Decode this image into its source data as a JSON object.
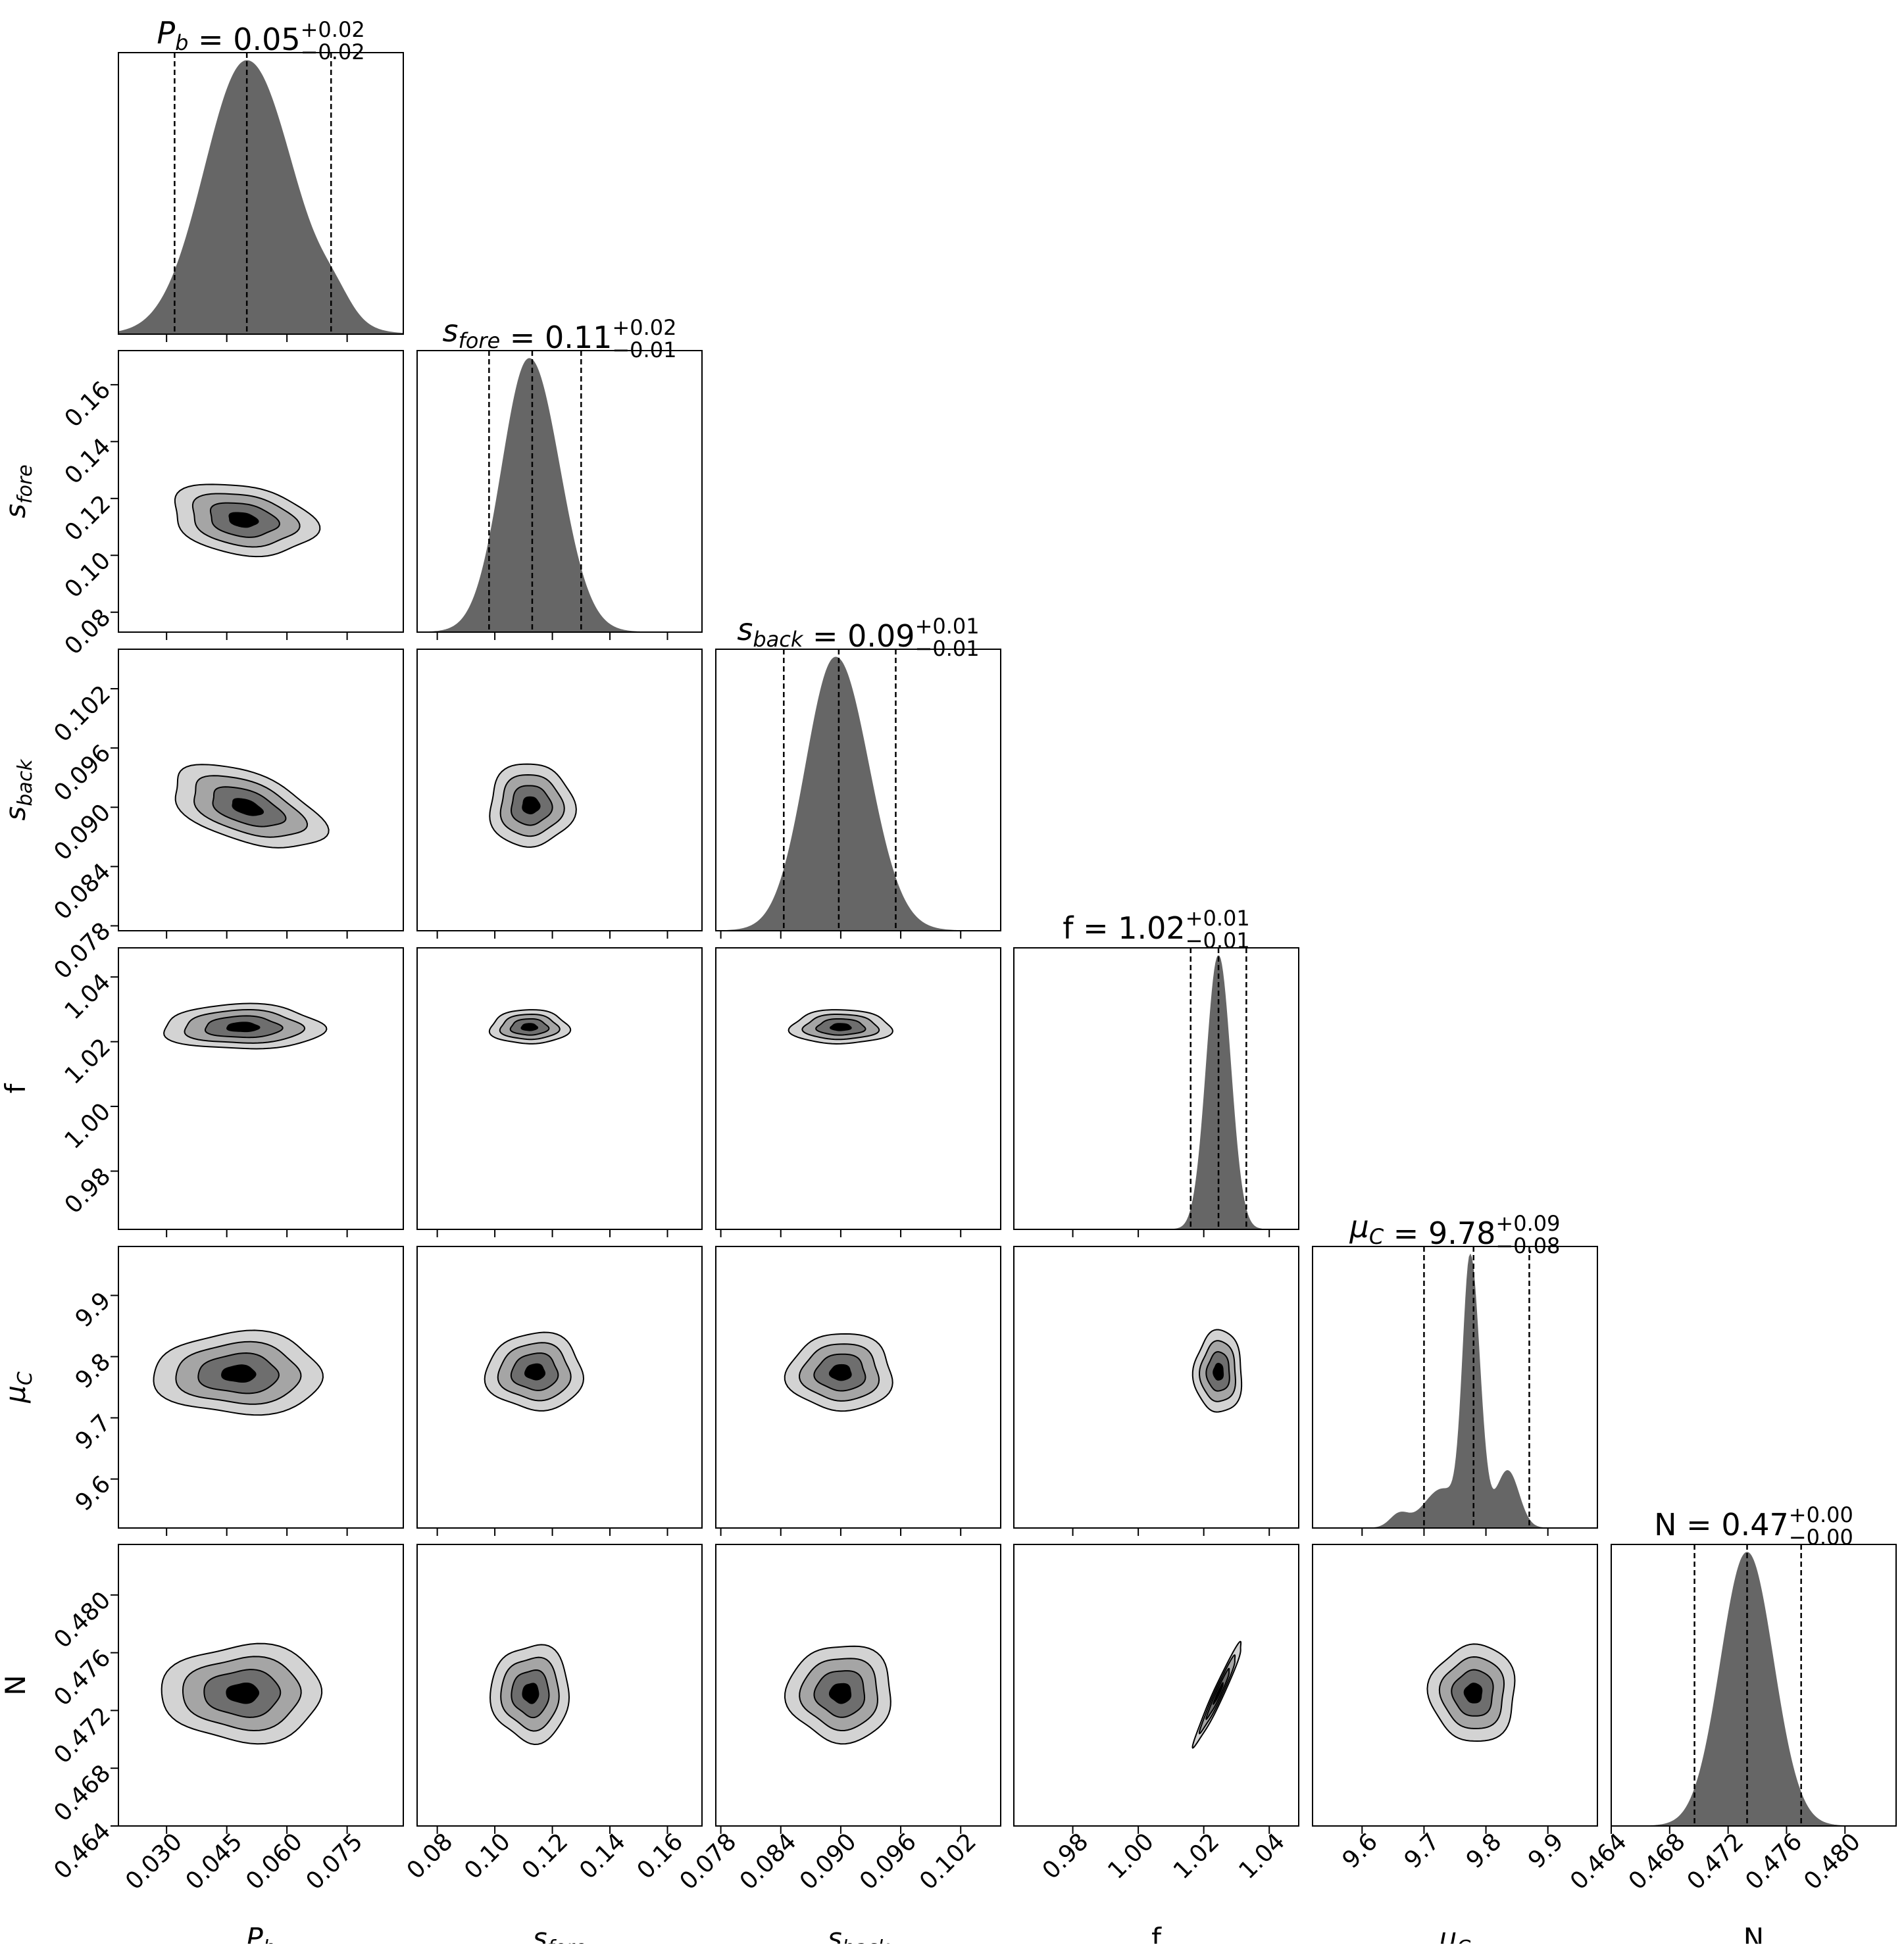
{
  "chart_data": {
    "type": "corner",
    "colors": {
      "hist_fill": "#666666",
      "contour_levels": [
        "#d3d3d3",
        "#a5a5a5",
        "#6e6e6e",
        "#000000"
      ],
      "frame": "#000000",
      "quantile_line": "#000000"
    },
    "parameters": [
      {
        "id": "Pb",
        "symbol": "P",
        "subscript": "b",
        "label_upright": false,
        "range": [
          0.018,
          0.089
        ],
        "ticks": [
          0.03,
          0.045,
          0.06,
          0.075
        ],
        "tick_labels": [
          "0.030",
          "0.045",
          "0.060",
          "0.075"
        ],
        "median": 0.05,
        "q16": 0.032,
        "q84": 0.071,
        "title_value": "0.05",
        "title_plus": "+0.02",
        "title_minus": "−0.02",
        "hist_shape": {
          "peak": 0.05,
          "sigma_left": 0.0105,
          "sigma_right": 0.0115
        }
      },
      {
        "id": "sfore",
        "symbol": "s",
        "subscript": "fore",
        "label_upright": false,
        "range": [
          0.073,
          0.172
        ],
        "ticks": [
          0.08,
          0.1,
          0.12,
          0.14,
          0.16
        ],
        "tick_labels": [
          "0.08",
          "0.10",
          "0.12",
          "0.14",
          "0.16"
        ],
        "median": 0.113,
        "q16": 0.098,
        "q84": 0.13,
        "title_value": "0.11",
        "title_plus": "+0.02",
        "title_minus": "−0.01",
        "hist_shape": {
          "peak": 0.112,
          "sigma_left": 0.0095,
          "sigma_right": 0.0105
        }
      },
      {
        "id": "sback",
        "symbol": "s",
        "subscript": "back",
        "label_upright": false,
        "range": [
          0.0775,
          0.106
        ],
        "ticks": [
          0.078,
          0.084,
          0.09,
          0.096,
          0.102
        ],
        "tick_labels": [
          "0.078",
          "0.084",
          "0.090",
          "0.096",
          "0.102"
        ],
        "median": 0.0898,
        "q16": 0.0843,
        "q84": 0.0955,
        "title_value": "0.09",
        "title_plus": "+0.01",
        "title_minus": "−0.01",
        "hist_shape": {
          "peak": 0.0895,
          "sigma_left": 0.003,
          "sigma_right": 0.0033
        }
      },
      {
        "id": "f",
        "symbol": "f",
        "subscript": "",
        "label_upright": true,
        "range": [
          0.962,
          1.049
        ],
        "ticks": [
          0.98,
          1.0,
          1.02,
          1.04
        ],
        "tick_labels": [
          "0.98",
          "1.00",
          "1.02",
          "1.04"
        ],
        "median": 1.0245,
        "q16": 1.016,
        "q84": 1.033,
        "title_value": "1.02",
        "title_plus": "+0.01",
        "title_minus": "−0.01",
        "hist_shape": {
          "peak": 1.0245,
          "sigma_left": 0.0037,
          "sigma_right": 0.0037
        }
      },
      {
        "id": "muC",
        "symbol": "μ",
        "subscript": "C",
        "label_upright": false,
        "range": [
          9.52,
          9.98
        ],
        "ticks": [
          9.6,
          9.7,
          9.8,
          9.9
        ],
        "tick_labels": [
          "9.6",
          "9.7",
          "9.8",
          "9.9"
        ],
        "median": 9.78,
        "q16": 9.7,
        "q84": 9.87,
        "title_value": "9.78",
        "title_plus": "+0.09",
        "title_minus": "−0.08",
        "hist_shape": {
          "peak": 9.775,
          "sigma_left": 0.012,
          "sigma_right": 0.015
        }
      },
      {
        "id": "N",
        "symbol": "N",
        "subscript": "",
        "label_upright": true,
        "range": [
          0.464,
          0.4835
        ],
        "ticks": [
          0.464,
          0.468,
          0.472,
          0.476,
          0.48
        ],
        "tick_labels": [
          "0.464",
          "0.468",
          "0.472",
          "0.476",
          "0.480"
        ],
        "median": 0.4733,
        "q16": 0.4697,
        "q84": 0.477,
        "title_value": "0.47",
        "title_plus": "+0.00",
        "title_minus": "−0.00",
        "hist_shape": {
          "peak": 0.4733,
          "sigma_left": 0.0018,
          "sigma_right": 0.0018
        }
      }
    ],
    "contour_pairs": [
      {
        "x": "Pb",
        "y": "sfore",
        "center": [
          0.049,
          0.1125
        ],
        "sx": 0.0085,
        "sy": 0.006,
        "rho": -0.25
      },
      {
        "x": "Pb",
        "y": "sback",
        "center": [
          0.05,
          0.09
        ],
        "sx": 0.009,
        "sy": 0.002,
        "rho": -0.5
      },
      {
        "x": "Pb",
        "y": "f",
        "center": [
          0.049,
          1.0245
        ],
        "sx": 0.0095,
        "sy": 0.0033,
        "rho": 0.0
      },
      {
        "x": "Pb",
        "y": "muC",
        "center": [
          0.048,
          9.772
        ],
        "sx": 0.01,
        "sy": 0.032,
        "rho": 0.0
      },
      {
        "x": "Pb",
        "y": "N",
        "center": [
          0.049,
          0.4732
        ],
        "sx": 0.0095,
        "sy": 0.0016,
        "rho": 0.0
      },
      {
        "x": "sfore",
        "y": "sback",
        "center": [
          0.1125,
          0.0902
        ],
        "sx": 0.007,
        "sy": 0.002,
        "rho": 0.0
      },
      {
        "x": "sfore",
        "y": "f",
        "center": [
          0.112,
          1.0245
        ],
        "sx": 0.0065,
        "sy": 0.0025,
        "rho": 0.0
      },
      {
        "x": "sfore",
        "y": "muC",
        "center": [
          0.114,
          9.775
        ],
        "sx": 0.008,
        "sy": 0.03,
        "rho": 0.0
      },
      {
        "x": "sfore",
        "y": "N",
        "center": [
          0.1125,
          0.4732
        ],
        "sx": 0.0065,
        "sy": 0.0016,
        "rho": 0.0
      },
      {
        "x": "sback",
        "y": "f",
        "center": [
          0.09,
          1.0245
        ],
        "sx": 0.0024,
        "sy": 0.0025,
        "rho": 0.0
      },
      {
        "x": "sback",
        "y": "muC",
        "center": [
          0.09,
          9.774
        ],
        "sx": 0.0025,
        "sy": 0.03,
        "rho": 0.0
      },
      {
        "x": "sback",
        "y": "N",
        "center": [
          0.09,
          0.4732
        ],
        "sx": 0.0025,
        "sy": 0.0016,
        "rho": 0.0
      },
      {
        "x": "f",
        "y": "muC",
        "center": [
          1.0245,
          9.775
        ],
        "sx": 0.0035,
        "sy": 0.032,
        "rho": 0.0
      },
      {
        "x": "f",
        "y": "N",
        "center": [
          1.0245,
          0.4732
        ],
        "sx": 0.0035,
        "sy": 0.0017,
        "rho": 0.97
      },
      {
        "x": "muC",
        "y": "N",
        "center": [
          9.78,
          0.4732
        ],
        "sx": 0.033,
        "sy": 0.0016,
        "rho": 0.0
      }
    ]
  }
}
